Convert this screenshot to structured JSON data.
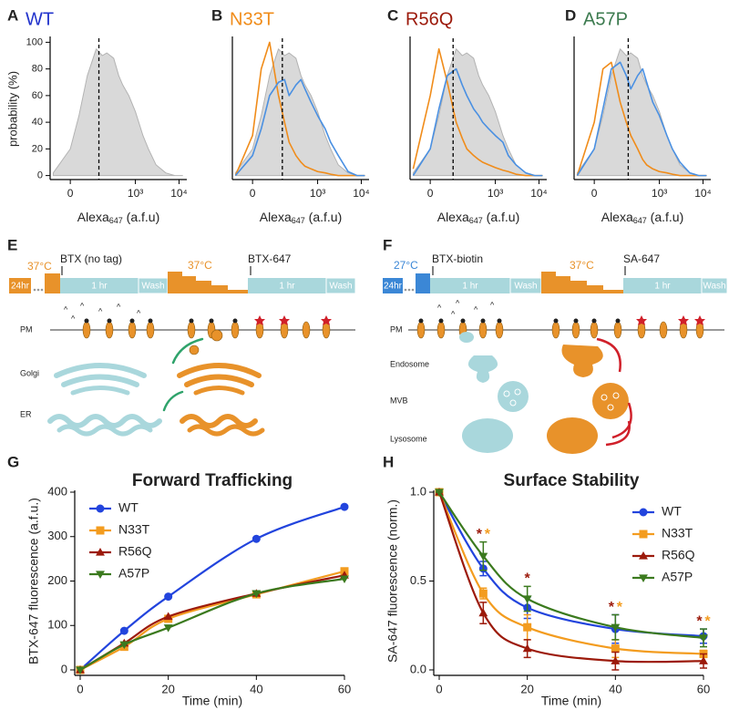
{
  "chart_data": [
    {
      "type": "line",
      "label": "A",
      "title": "WT",
      "title_color": "#2233cc",
      "ylabel": "probability (%)",
      "xlabel": [
        "Alexa",
        "647",
        " (a.f.u)"
      ],
      "xscale": "symlog",
      "xlim": [
        -65,
        15000
      ],
      "ylim": [
        -3,
        103
      ],
      "yticks": [
        0,
        20,
        40,
        60,
        80,
        100
      ],
      "xticks": [
        0,
        {
          "value": 1000,
          "label": "10³"
        },
        {
          "value": 10000,
          "label": "10⁴"
        }
      ],
      "threshold": 120,
      "x": [
        -50,
        0,
        20,
        50,
        100,
        150,
        200,
        300,
        400,
        500,
        700,
        1000,
        1500,
        2000,
        3000,
        5000,
        8000,
        12000
      ],
      "series": [
        {
          "color": "#c8c8c8",
          "fill": true,
          "values": [
            2,
            20,
            45,
            75,
            95,
            90,
            92,
            88,
            75,
            68,
            60,
            48,
            30,
            20,
            8,
            2,
            0,
            0
          ]
        }
      ]
    },
    {
      "type": "line",
      "label": "B",
      "title": "N33T",
      "title_color": "#f08c1a",
      "xlabel": [
        "Alexa",
        "647",
        " (a.f.u)"
      ],
      "xscale": "symlog",
      "xlim": [
        -65,
        15000
      ],
      "ylim": [
        -3,
        103
      ],
      "xticks": [
        0,
        {
          "value": 1000,
          "label": "10³"
        },
        {
          "value": 10000,
          "label": "10⁴"
        }
      ],
      "threshold": 130,
      "x": [
        -50,
        0,
        20,
        50,
        100,
        150,
        200,
        300,
        400,
        500,
        700,
        1000,
        1500,
        2000,
        3000,
        5000,
        8000,
        12000
      ],
      "series": [
        {
          "color": "#c8c8c8",
          "fill": true,
          "values": [
            2,
            20,
            45,
            75,
            95,
            90,
            92,
            88,
            75,
            68,
            60,
            48,
            30,
            20,
            8,
            2,
            0,
            0
          ]
        },
        {
          "color": "#f08c1a",
          "values": [
            0,
            30,
            80,
            100,
            60,
            40,
            25,
            15,
            10,
            7,
            5,
            3,
            2,
            1,
            0,
            0,
            0,
            0
          ]
        },
        {
          "color": "#4a90e2",
          "values": [
            0,
            15,
            35,
            60,
            70,
            72,
            60,
            68,
            72,
            65,
            55,
            45,
            35,
            25,
            15,
            3,
            0,
            0
          ]
        }
      ]
    },
    {
      "type": "line",
      "label": "C",
      "title": "R56Q",
      "title_color": "#9c1a0b",
      "xlabel": [
        "Alexa",
        "647",
        " (a.f.u)"
      ],
      "xscale": "symlog",
      "xlim": [
        -65,
        15000
      ],
      "ylim": [
        -3,
        103
      ],
      "xticks": [
        0,
        {
          "value": 1000,
          "label": "10³"
        },
        {
          "value": 10000,
          "label": "10⁴"
        }
      ],
      "threshold": 80,
      "x": [
        -50,
        0,
        20,
        50,
        100,
        150,
        200,
        300,
        400,
        500,
        700,
        1000,
        1500,
        2000,
        3000,
        5000,
        8000,
        12000
      ],
      "series": [
        {
          "color": "#c8c8c8",
          "fill": true,
          "values": [
            2,
            20,
            45,
            75,
            95,
            90,
            92,
            88,
            75,
            68,
            60,
            48,
            30,
            20,
            8,
            2,
            0,
            0
          ]
        },
        {
          "color": "#f08c1a",
          "values": [
            5,
            60,
            95,
            70,
            40,
            28,
            20,
            15,
            12,
            10,
            8,
            6,
            4,
            3,
            1,
            0,
            0,
            0
          ]
        },
        {
          "color": "#4a90e2",
          "values": [
            0,
            20,
            50,
            75,
            80,
            68,
            60,
            50,
            45,
            40,
            35,
            30,
            25,
            15,
            8,
            2,
            0,
            0
          ]
        }
      ]
    },
    {
      "type": "line",
      "label": "D",
      "title": "A57P",
      "title_color": "#3b7a4e",
      "xlabel": [
        "Alexa",
        "647",
        " (a.f.u)"
      ],
      "xscale": "symlog",
      "xlim": [
        -65,
        15000
      ],
      "ylim": [
        -3,
        103
      ],
      "xticks": [
        0,
        {
          "value": 1000,
          "label": "10³"
        },
        {
          "value": 10000,
          "label": "10⁴"
        }
      ],
      "threshold": 170,
      "x": [
        -50,
        0,
        20,
        50,
        100,
        150,
        200,
        300,
        400,
        500,
        700,
        1000,
        1500,
        2000,
        3000,
        5000,
        8000,
        12000
      ],
      "series": [
        {
          "color": "#c8c8c8",
          "fill": true,
          "values": [
            2,
            20,
            45,
            75,
            95,
            90,
            92,
            88,
            75,
            68,
            60,
            48,
            30,
            20,
            8,
            2,
            0,
            0
          ]
        },
        {
          "color": "#f08c1a",
          "values": [
            0,
            40,
            80,
            85,
            55,
            40,
            30,
            20,
            12,
            8,
            5,
            3,
            2,
            1,
            0,
            0,
            0,
            0
          ]
        },
        {
          "color": "#4a90e2",
          "values": [
            0,
            20,
            50,
            80,
            85,
            75,
            65,
            75,
            80,
            70,
            55,
            45,
            30,
            20,
            10,
            2,
            0,
            0
          ]
        }
      ]
    },
    {
      "type": "scatter-line",
      "label": "G",
      "title": "Forward Trafficking",
      "xlabel": "Time (min)",
      "ylabel": "BTX-647 fluorescence (a.f.u.)",
      "x": [
        0,
        10,
        20,
        40,
        60
      ],
      "xlim": [
        0,
        60
      ],
      "ylim": [
        0,
        400
      ],
      "xticks": [
        0,
        20,
        40,
        60
      ],
      "yticks": [
        0,
        100,
        200,
        300,
        400
      ],
      "legend": "upper left",
      "series": [
        {
          "name": "WT",
          "color": "#2244dd",
          "marker": "circle",
          "values": [
            0,
            88,
            165,
            295,
            367
          ]
        },
        {
          "name": "N33T",
          "color": "#f39c1f",
          "marker": "square",
          "values": [
            0,
            52,
            115,
            170,
            222
          ]
        },
        {
          "name": "R56Q",
          "color": "#9c1a0b",
          "marker": "triangle",
          "values": [
            0,
            60,
            120,
            172,
            213
          ]
        },
        {
          "name": "A57P",
          "color": "#3b7a1e",
          "marker": "triangle-down",
          "values": [
            0,
            57,
            95,
            172,
            205
          ]
        }
      ]
    },
    {
      "type": "scatter-line",
      "label": "H",
      "title": "Surface Stability",
      "xlabel": "Time (min)",
      "ylabel": "SA-647 fluorescence (norm.)",
      "x": [
        0,
        10,
        20,
        40,
        60
      ],
      "xlim": [
        0,
        60
      ],
      "ylim": [
        0,
        1
      ],
      "xticks": [
        0,
        20,
        40,
        60
      ],
      "yticks": [
        {
          "value": 0,
          "label": "0.0"
        },
        0.5,
        {
          "value": 1,
          "label": "1.0"
        }
      ],
      "legend": "right",
      "series": [
        {
          "name": "WT",
          "color": "#2244dd",
          "marker": "circle",
          "values": [
            1,
            0.57,
            0.35,
            0.23,
            0.19
          ],
          "errors": [
            0,
            0.04,
            0.06,
            0.08,
            0.04
          ]
        },
        {
          "name": "N33T",
          "color": "#f39c1f",
          "marker": "square",
          "values": [
            1,
            0.43,
            0.24,
            0.12,
            0.09
          ],
          "errors": [
            0,
            0.03,
            0.07,
            0.05,
            0.02
          ]
        },
        {
          "name": "R56Q",
          "color": "#9c1a0b",
          "marker": "triangle",
          "values": [
            1,
            0.32,
            0.12,
            0.05,
            0.05
          ],
          "errors": [
            0,
            0.06,
            0.05,
            0.05,
            0.04
          ]
        },
        {
          "name": "A57P",
          "color": "#3b7a1e",
          "marker": "triangle-down",
          "values": [
            1,
            0.64,
            0.4,
            0.24,
            0.18
          ],
          "errors": [
            0,
            0.08,
            0.07,
            0.07,
            0.05
          ]
        }
      ],
      "significance": [
        {
          "x": 10,
          "labels": [
            "*",
            "*"
          ],
          "colors": [
            "#9c1a0b",
            "#f39c1f"
          ]
        },
        {
          "x": 20,
          "labels": [
            "*"
          ],
          "colors": [
            "#9c1a0b"
          ]
        },
        {
          "x": 40,
          "labels": [
            "*",
            "*"
          ],
          "colors": [
            "#9c1a0b",
            "#f39c1f"
          ]
        },
        {
          "x": 60,
          "labels": [
            "*",
            "*"
          ],
          "colors": [
            "#9c1a0b",
            "#f39c1f"
          ]
        }
      ]
    }
  ],
  "diagrams": {
    "E": {
      "label": "E",
      "temps": [
        "37°C",
        "37°C"
      ],
      "treatments": [
        "BTX (no tag)",
        "BTX-647"
      ],
      "timeline": [
        "24hr",
        "1 hr",
        "Wash",
        "1 hr",
        "Wash"
      ],
      "compartments": [
        "PM",
        "Golgi",
        "ER"
      ]
    },
    "F": {
      "label": "F",
      "temps": [
        "27°C",
        "37°C"
      ],
      "treatments": [
        "BTX-biotin",
        "SA-647"
      ],
      "timeline": [
        "24hr",
        "1 hr",
        "Wash",
        "1 hr",
        "Wash"
      ],
      "compartments": [
        "PM",
        "Endosome",
        "MVB",
        "Lysosome"
      ]
    }
  }
}
